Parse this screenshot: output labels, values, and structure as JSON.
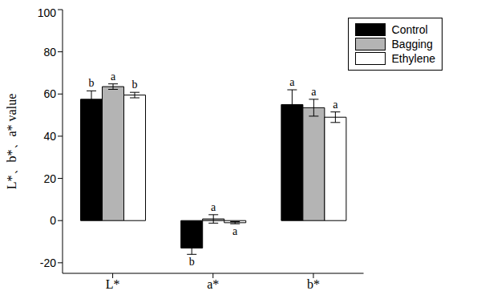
{
  "chart_data": {
    "type": "bar",
    "y_label": "L*、b*、a* value",
    "categories": [
      "L*",
      "a*",
      "b*"
    ],
    "series": [
      {
        "name": "Control",
        "color": "#000000",
        "values": [
          57.5,
          -13,
          55
        ],
        "errors": [
          4,
          3,
          7
        ],
        "letters": [
          "b",
          "b",
          "a"
        ]
      },
      {
        "name": "Bagging",
        "color": "#b4b4b4",
        "values": [
          63.5,
          0.8,
          53.5
        ],
        "errors": [
          1.3,
          2,
          4
        ],
        "letters": [
          "a",
          "a",
          "a"
        ]
      },
      {
        "name": "Ethylene",
        "color": "#ffffff",
        "values": [
          59.5,
          -1,
          49
        ],
        "errors": [
          1.3,
          0.5,
          2.5
        ],
        "letters": [
          "b",
          "a",
          "a"
        ]
      }
    ],
    "ylim": [
      -25,
      100
    ],
    "yticks": [
      -20,
      0,
      20,
      40,
      60,
      80,
      100
    ],
    "legend": "upper right",
    "grid": false
  }
}
